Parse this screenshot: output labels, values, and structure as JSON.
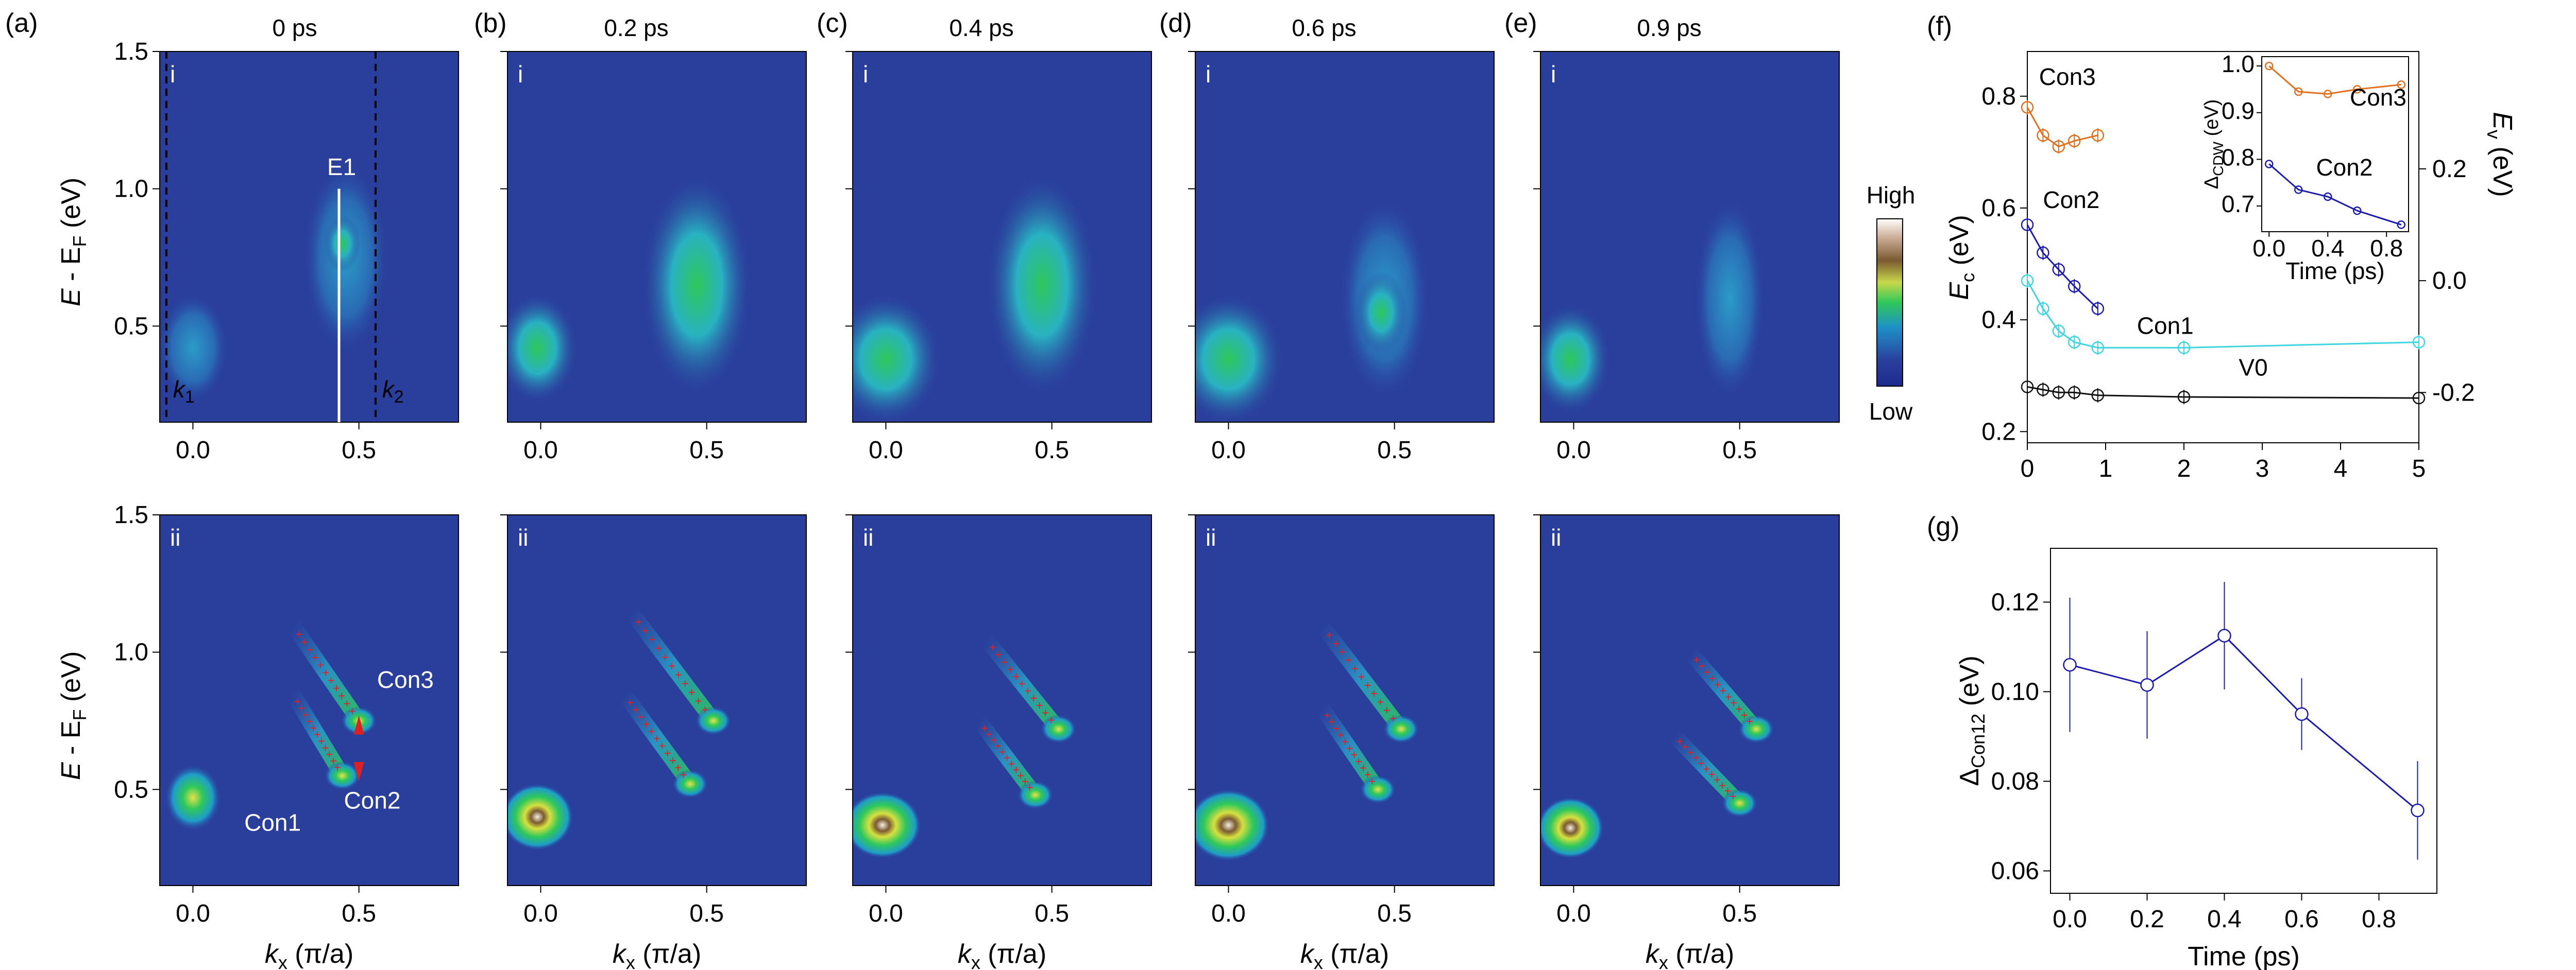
{
  "figure": {
    "panel_labels": [
      "(a)",
      "(b)",
      "(c)",
      "(d)",
      "(e)",
      "(f)",
      "(g)"
    ],
    "map_titles": [
      "0 ps",
      "0.2 ps",
      "0.4 ps",
      "0.6 ps",
      "0.9 ps"
    ],
    "row_labels": [
      "i",
      "ii"
    ],
    "map_ylabel_pieces": {
      "e": "E",
      "mid": " - E",
      "sub": "F",
      "unit": " (eV)"
    },
    "map_xlabel_pieces": {
      "k": "k",
      "sub": "x",
      "unit": " (π/a)"
    },
    "map_yticks": [
      "1.5",
      "1.0",
      "0.5"
    ],
    "map_xticks": [
      "0.0",
      "0.5"
    ],
    "annotations": {
      "E1": "E1",
      "k1": "k",
      "k1_sub": "1",
      "k2": "k",
      "k2_sub": "2",
      "Con1": "Con1",
      "Con2": "Con2",
      "Con3": "Con3"
    },
    "colorbar": {
      "high": "High",
      "low": "Low"
    },
    "colors": {
      "map_background": "#2a3e9c",
      "con3": "#e0701e",
      "con2": "#1a1ab0",
      "con1": "#3dd6e0",
      "v0": "#111111",
      "g_line": "#1a1ab0",
      "marker": "#e02020"
    }
  },
  "chart_data": [
    {
      "panel": "(f)",
      "type": "line",
      "xlabel": "",
      "ylabel_left": {
        "main": "E",
        "sub": "c",
        "unit": " (eV)"
      },
      "ylabel_right": {
        "main": "E",
        "sub": "v",
        "unit": " (eV)"
      },
      "xlim": [
        0,
        5
      ],
      "ylim_left": [
        0.18,
        0.88
      ],
      "ylim_right": [
        -0.29,
        0.41
      ],
      "xticks": [
        "0",
        "1",
        "2",
        "3",
        "4",
        "5"
      ],
      "yticks_left": [
        "0.2",
        "0.4",
        "0.6",
        "0.8"
      ],
      "yticks_right": [
        "-0.2",
        "0.0",
        "0.2"
      ],
      "series": [
        {
          "name": "Con3",
          "color": "#e0701e",
          "x": [
            0,
            0.2,
            0.4,
            0.6,
            0.9
          ],
          "y": [
            0.78,
            0.73,
            0.71,
            0.72,
            0.73
          ]
        },
        {
          "name": "Con2",
          "color": "#1a1ab0",
          "x": [
            0,
            0.2,
            0.4,
            0.6,
            0.9
          ],
          "y": [
            0.57,
            0.52,
            0.49,
            0.46,
            0.42
          ]
        },
        {
          "name": "Con1",
          "color": "#3dd6e0",
          "x": [
            0,
            0.2,
            0.4,
            0.6,
            0.9,
            2,
            5
          ],
          "y": [
            0.47,
            0.42,
            0.38,
            0.36,
            0.35,
            0.35,
            0.36
          ]
        },
        {
          "name": "V0",
          "color": "#111111",
          "x": [
            0,
            0.2,
            0.4,
            0.6,
            0.9,
            2,
            5
          ],
          "y": [
            0.28,
            0.275,
            0.27,
            0.27,
            0.265,
            0.262,
            0.26
          ]
        }
      ],
      "inset": {
        "type": "line",
        "xlabel": "Time (ps)",
        "ylabel": {
          "main": "Δ",
          "sub": "CDW",
          "unit": " (eV)"
        },
        "xlim": [
          -0.05,
          0.95
        ],
        "ylim": [
          0.645,
          1.02
        ],
        "xticks": [
          "0.0",
          "0.4",
          "0.8"
        ],
        "yticks": [
          "0.7",
          "0.8",
          "0.9",
          "1.0"
        ],
        "series": [
          {
            "name": "Con3",
            "color": "#e0701e",
            "x": [
              0,
              0.2,
              0.4,
              0.6,
              0.9
            ],
            "y": [
              1.0,
              0.945,
              0.94,
              0.95,
              0.96
            ]
          },
          {
            "name": "Con2",
            "color": "#1a1ab0",
            "x": [
              0,
              0.2,
              0.4,
              0.6,
              0.9
            ],
            "y": [
              0.79,
              0.735,
              0.72,
              0.69,
              0.66
            ]
          }
        ]
      }
    },
    {
      "panel": "(g)",
      "type": "line",
      "xlabel": "Time (ps)",
      "ylabel": {
        "main": "Δ",
        "sub": "Con12",
        "unit": " (eV)"
      },
      "xlim": [
        -0.05,
        0.95
      ],
      "ylim": [
        0.055,
        0.132
      ],
      "xticks": [
        "0.0",
        "0.2",
        "0.4",
        "0.6",
        "0.8"
      ],
      "yticks": [
        "0.06",
        "0.08",
        "0.10",
        "0.12"
      ],
      "series": [
        {
          "name": "",
          "color": "#1a1ab0",
          "x": [
            0,
            0.2,
            0.4,
            0.6,
            0.9
          ],
          "y": [
            0.106,
            0.1015,
            0.1125,
            0.095,
            0.0735
          ],
          "err": [
            0.015,
            0.012,
            0.012,
            0.008,
            0.011
          ]
        }
      ]
    }
  ]
}
